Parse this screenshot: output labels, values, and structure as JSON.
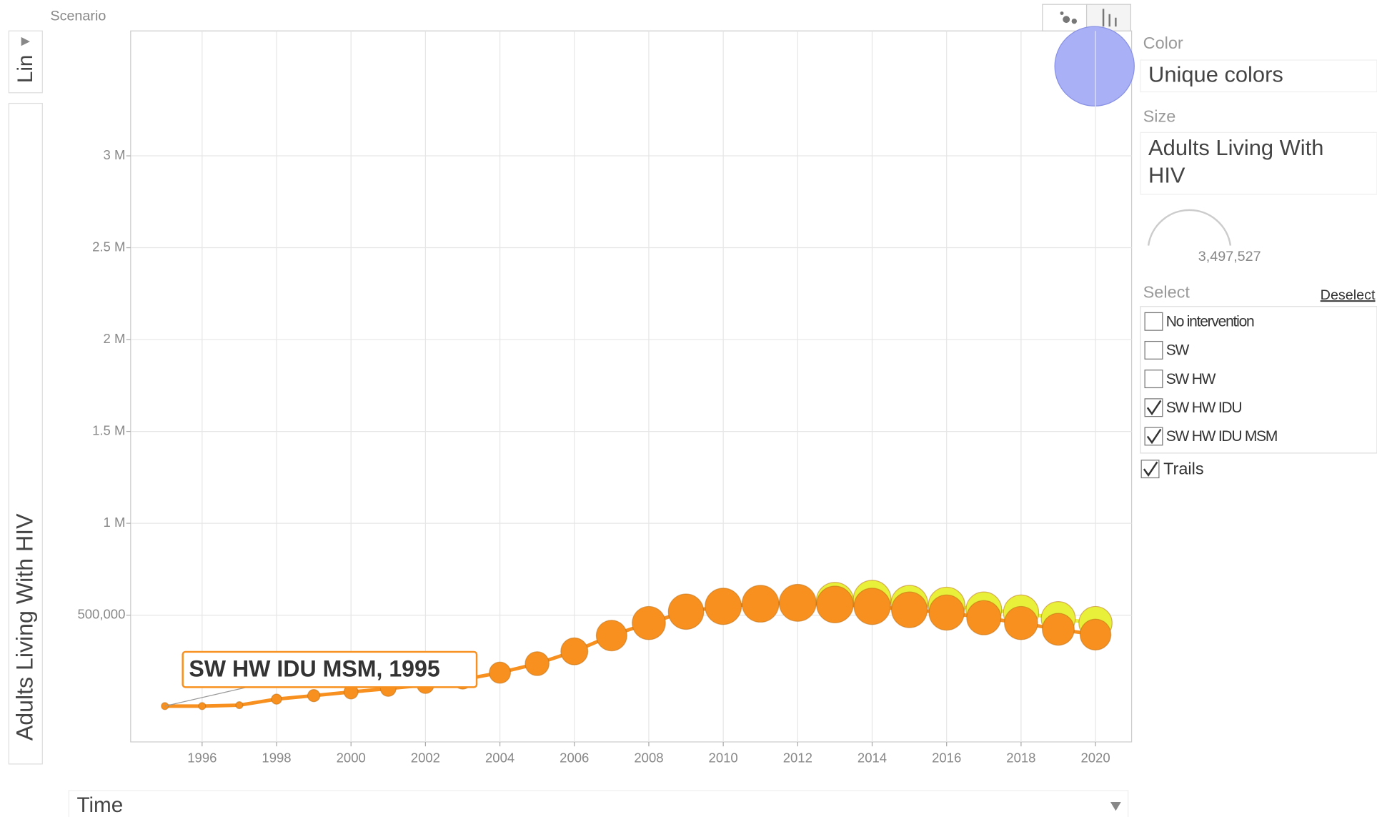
{
  "header": {
    "scenario": "Scenario",
    "scale_toggle": "Lin"
  },
  "chart_data": {
    "type": "scatter",
    "y_label": "Adults Living With HIV",
    "x_label": "Time",
    "annotation": "SW HW IDU MSM, 1995",
    "x": [
      1995,
      1996,
      1997,
      1998,
      1999,
      2000,
      2001,
      2002,
      2003,
      2004,
      2005,
      2006,
      2007,
      2008,
      2009,
      2010,
      2011,
      2012,
      2013,
      2014,
      2015,
      2016,
      2017,
      2018,
      2019,
      2020
    ],
    "series": [
      {
        "name": "SW HW IDU",
        "color": "#e8f03a",
        "values": [
          null,
          null,
          null,
          null,
          null,
          null,
          null,
          null,
          null,
          null,
          null,
          null,
          null,
          null,
          null,
          null,
          null,
          null,
          577000,
          587000,
          562000,
          553000,
          529000,
          514000,
          481000,
          457000
        ]
      },
      {
        "name": "SW HW IDU MSM",
        "color": "#f7901e",
        "values": [
          5000,
          5000,
          10000,
          43000,
          62000,
          82000,
          100000,
          120000,
          149000,
          187000,
          236000,
          303000,
          389000,
          457000,
          519000,
          548000,
          562000,
          567000,
          558000,
          548000,
          529000,
          514000,
          486000,
          457000,
          423000,
          394000
        ]
      }
    ],
    "xlim": [
      1994.08,
      2020.97
    ],
    "ylim": [
      -190000,
      3680000
    ],
    "xticks": [
      1996,
      1998,
      2000,
      2002,
      2004,
      2006,
      2008,
      2010,
      2012,
      2014,
      2016,
      2018,
      2020
    ],
    "yticks": [
      {
        "value": 500000,
        "label": "500,000"
      },
      {
        "value": 1000000,
        "label": "1 M"
      },
      {
        "value": 1500000,
        "label": "1.5 M"
      },
      {
        "value": 2000000,
        "label": "2 M"
      },
      {
        "value": 2500000,
        "label": "2.5 M"
      },
      {
        "value": 3000000,
        "label": "3 M"
      }
    ],
    "grid": true
  },
  "controls": {
    "color_label": "Color",
    "color_value": "Unique colors",
    "size_label": "Size",
    "size_value": [
      "Adults Living With",
      "HIV"
    ],
    "size_max": {
      "value": 3497527,
      "label": "3,497,527"
    },
    "select_label": "Select",
    "deselect": "Deselect",
    "items": [
      {
        "label": "No intervention",
        "checked": false
      },
      {
        "label": "SW",
        "checked": false
      },
      {
        "label": "SW HW",
        "checked": false
      },
      {
        "label": "SW HW IDU",
        "checked": true
      },
      {
        "label": "SW HW IDU MSM",
        "checked": true
      }
    ],
    "trails": {
      "label": "Trails",
      "checked": true
    }
  }
}
